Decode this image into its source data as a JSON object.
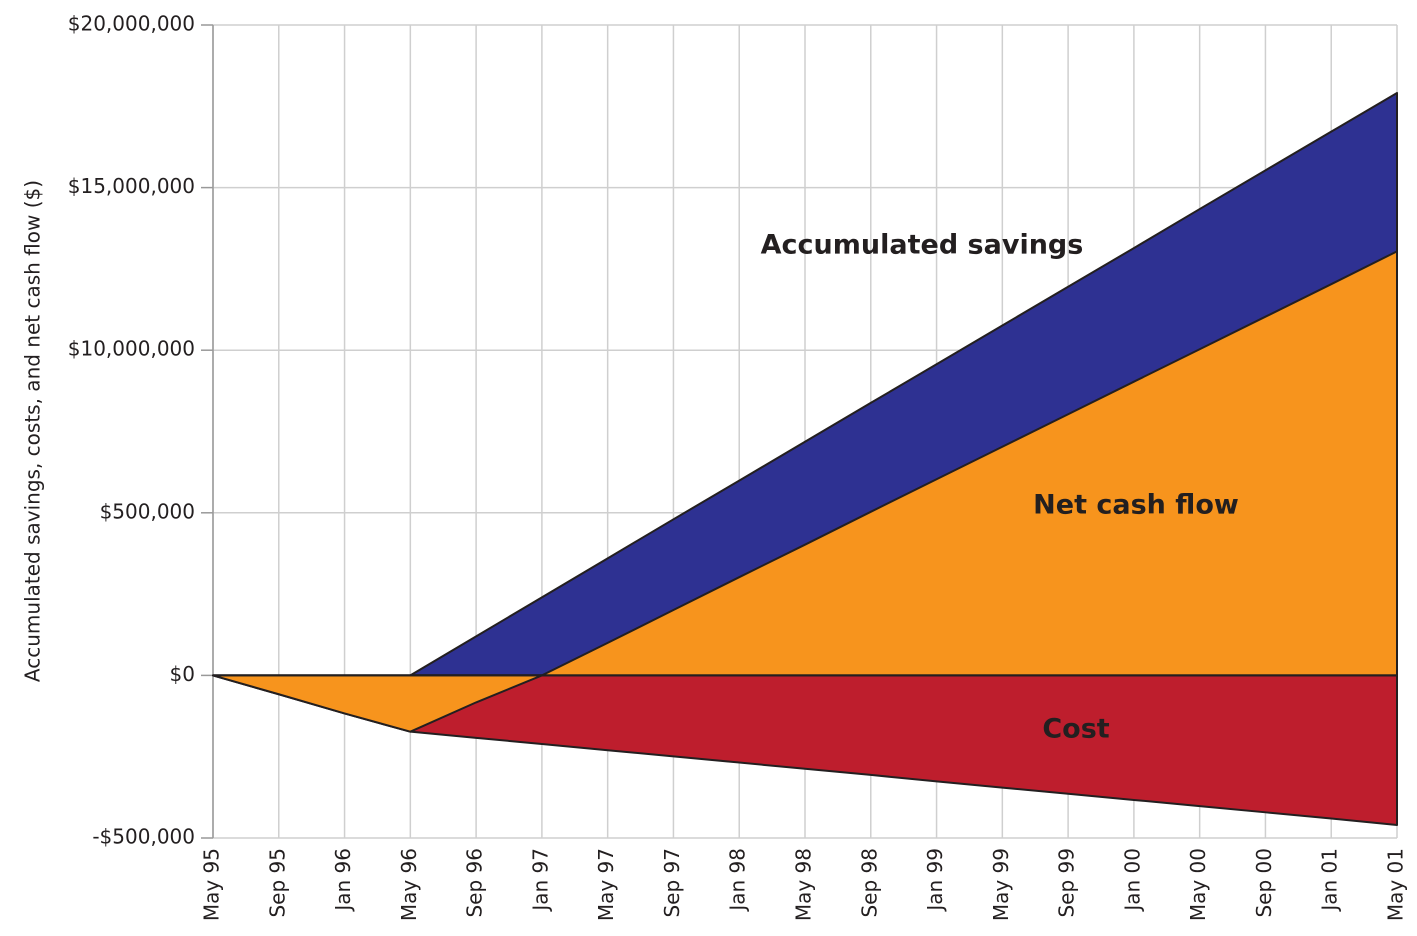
{
  "chart_data": {
    "type": "area",
    "y_label": "Accumulated savings, costs, and net cash flow ($)",
    "categories": [
      "May 95",
      "Sep 95",
      "Jan 96",
      "May 96",
      "Sep 96",
      "Jan 97",
      "May 97",
      "Sep 97",
      "Jan 98",
      "May 98",
      "Sep 98",
      "Jan 99",
      "May 99",
      "Sep 99",
      "Jan 00",
      "May 00",
      "Sep 00",
      "Jan 01",
      "May 01"
    ],
    "series": [
      {
        "name": "Cost",
        "color": "#be1e2d",
        "values": [
          0,
          -58000,
          -117000,
          -173000,
          -192000,
          -211000,
          -230000,
          -249000,
          -268000,
          -287000,
          -306000,
          -326000,
          -345000,
          -364000,
          -383000,
          -402000,
          -421000,
          -440000,
          -460000
        ]
      },
      {
        "name": "Accumulated savings",
        "color": "#2e3192",
        "values": [
          null,
          null,
          null,
          0,
          120000,
          240000,
          360000,
          480000,
          2380000,
          4650000,
          6920000,
          9180000,
          10760000,
          11950000,
          13140000,
          14340000,
          15530000,
          16720000,
          17910000
        ]
      },
      {
        "name": "Net cash flow",
        "color": "#f7941d",
        "values": [
          0,
          -58000,
          -117000,
          -173000,
          -83000,
          0,
          100000,
          201000,
          302000,
          402000,
          558000,
          2460000,
          4360000,
          6260000,
          8160000,
          10030000,
          11030000,
          12030000,
          13040000
        ]
      }
    ],
    "annotations": [
      "Accumulated savings",
      "Net cash flow",
      "Cost"
    ],
    "ylim": [
      -500000,
      20000000
    ],
    "yticks": [
      {
        "value": -500000,
        "label": "-$500,000"
      },
      {
        "value": 0,
        "label": "$0"
      },
      {
        "value": 500000,
        "label": "$500,000"
      },
      {
        "value": 10000000,
        "label": "$10,000,000"
      },
      {
        "value": 15000000,
        "label": "$15,000,000"
      },
      {
        "value": 20000000,
        "label": "$20,000,000"
      }
    ],
    "grid": true
  }
}
